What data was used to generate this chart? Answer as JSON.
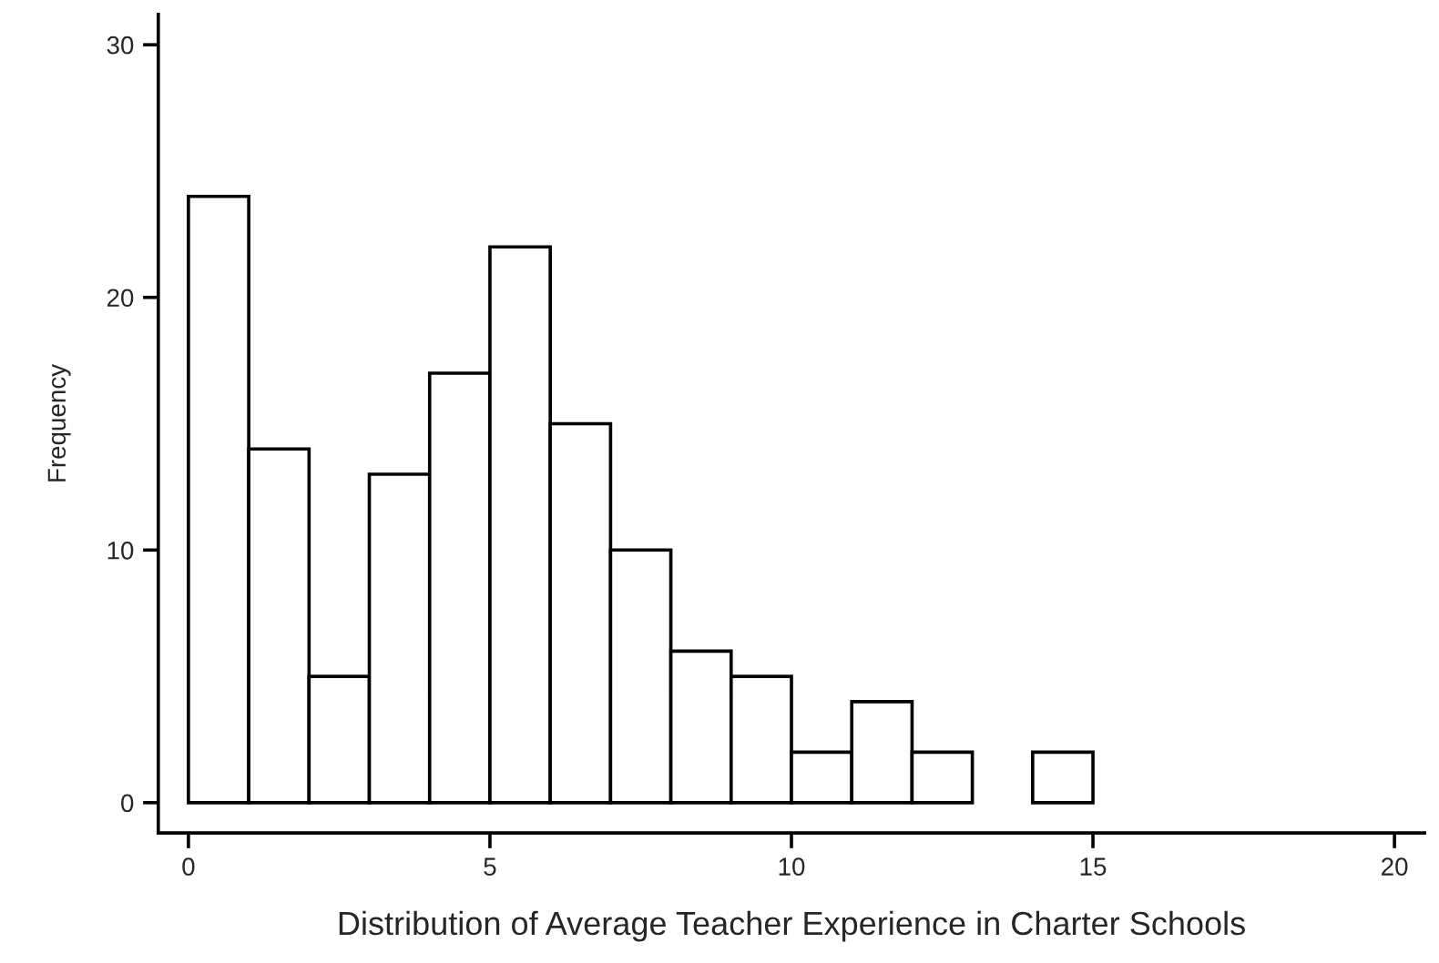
{
  "chart_data": {
    "type": "histogram",
    "xlabel": "Distribution of Average Teacher Experience in Charter Schools",
    "ylabel": "Frequency",
    "bins": [
      0,
      1,
      2,
      3,
      4,
      5,
      6,
      7,
      8,
      9,
      10,
      11,
      12,
      13,
      14,
      15
    ],
    "values": [
      24,
      14,
      5,
      13,
      17,
      22,
      15,
      10,
      6,
      5,
      2,
      4,
      2,
      0,
      2
    ],
    "color": "#ffffff",
    "xlim": [
      -0.5,
      20.5
    ],
    "ylim": [
      -1.2,
      31.2
    ],
    "xticks": [
      0,
      5,
      10,
      15,
      20
    ],
    "yticks": [
      0,
      10,
      20,
      30
    ],
    "grid": false
  }
}
